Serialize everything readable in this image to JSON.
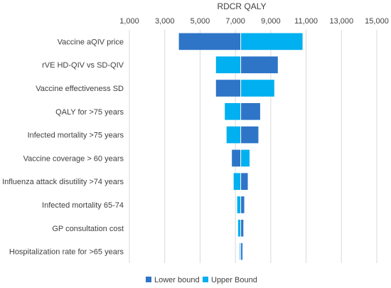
{
  "chart_data": {
    "type": "bar",
    "orientation": "horizontal",
    "subtype": "tornado",
    "title": "RDCR QALY",
    "xlim": [
      1000,
      15000
    ],
    "xticks": [
      "1,000",
      "3,000",
      "5,000",
      "7,000",
      "9,000",
      "11,000",
      "13,000",
      "15,000"
    ],
    "xtick_values": [
      1000,
      3000,
      5000,
      7000,
      9000,
      11000,
      13000,
      15000
    ],
    "base_value": 7300,
    "grid": true,
    "legend_position": "bottom",
    "categories": [
      "Vaccine aQIV price",
      "rVE HD-QIV vs SD-QIV",
      "Vaccine effectiveness SD",
      "QALY for >75  years",
      "Infected mortality >75 years",
      "Vaccine coverage > 60 years",
      "Influenza attack disutility >74 years",
      "Infected mortality 65-74",
      "GP consultation cost",
      "Hospitalization rate for >65 years"
    ],
    "series": [
      {
        "name": "Lower bound",
        "color": "#2E75C8",
        "values": [
          3800,
          9400,
          5900,
          8400,
          8300,
          6800,
          7700,
          7500,
          7450,
          7400
        ]
      },
      {
        "name": "Upper Bound",
        "color": "#00B0F0",
        "values": [
          10800,
          5900,
          9200,
          6400,
          6500,
          7800,
          6900,
          7100,
          7150,
          7250
        ]
      }
    ]
  }
}
